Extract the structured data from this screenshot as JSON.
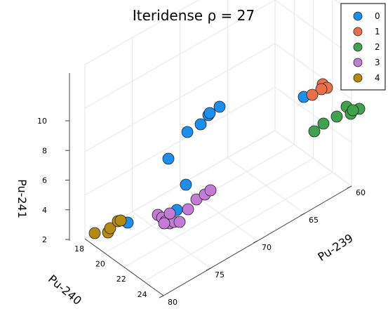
{
  "chart_data": {
    "type": "scatter",
    "title": "Iteridense ρ = 27",
    "xlabel": "Pu-239",
    "ylabel": "Pu-240",
    "zlabel": "Pu-241",
    "xticks": [
      "60",
      "65",
      "70",
      "75",
      "80"
    ],
    "yticks": [
      "18",
      "20",
      "22",
      "24"
    ],
    "zticks": [
      "2",
      "4",
      "6",
      "8",
      "10"
    ],
    "grid": true,
    "legend_position": "top-right",
    "legend": [
      "0",
      "1",
      "2",
      "3",
      "4"
    ],
    "colors": [
      "#1a8ff0",
      "#e8704a",
      "#3fa24c",
      "#c47bd6",
      "#b48b10"
    ],
    "series": [
      {
        "name": "0",
        "points": [
          [
            20.0,
            325.0
          ],
          [
            240.0,
            226.0
          ],
          [
            267.0,
            188.0
          ],
          [
            286.0,
            177.0
          ],
          [
            297.0,
            164.0
          ],
          [
            299.0,
            161.0
          ],
          [
            313.0,
            152.0
          ],
          [
            265.0,
            263.0
          ],
          [
            252.0,
            299.0
          ],
          [
            182.0,
            317.0
          ],
          [
            433.0,
            138.0
          ]
        ]
      },
      {
        "name": "1",
        "points": [
          [
            460.0,
            120.0
          ],
          [
            466.0,
            125.0
          ],
          [
            458.0,
            127.0
          ],
          [
            445.0,
            135.0
          ]
        ]
      },
      {
        "name": "2",
        "points": [
          [
            448.0,
            187.0
          ],
          [
            461.0,
            176.0
          ],
          [
            480.0,
            166.0
          ],
          [
            494.0,
            152.0
          ],
          [
            500.0,
            162.0
          ],
          [
            512.0,
            155.0
          ],
          [
            503.0,
            157.0
          ]
        ]
      },
      {
        "name": "3",
        "points": [
          [
            225.0,
            306.0
          ],
          [
            231.0,
            310.0
          ],
          [
            236.0,
            315.0
          ],
          [
            242.0,
            318.0
          ],
          [
            248.0,
            316.0
          ],
          [
            256.0,
            316.0
          ],
          [
            242.0,
            304.0
          ],
          [
            268.0,
            298.0
          ],
          [
            280.0,
            284.0
          ],
          [
            292.0,
            277.0
          ],
          [
            300.0,
            271.0
          ],
          [
            234.0,
            318.0
          ]
        ]
      },
      {
        "name": "4",
        "points": [
          [
            135.0,
            332.0
          ],
          [
            154.0,
            331.0
          ],
          [
            157.0,
            325.0
          ],
          [
            168.0,
            315.0
          ],
          [
            172.0,
            314.0
          ]
        ]
      }
    ]
  }
}
